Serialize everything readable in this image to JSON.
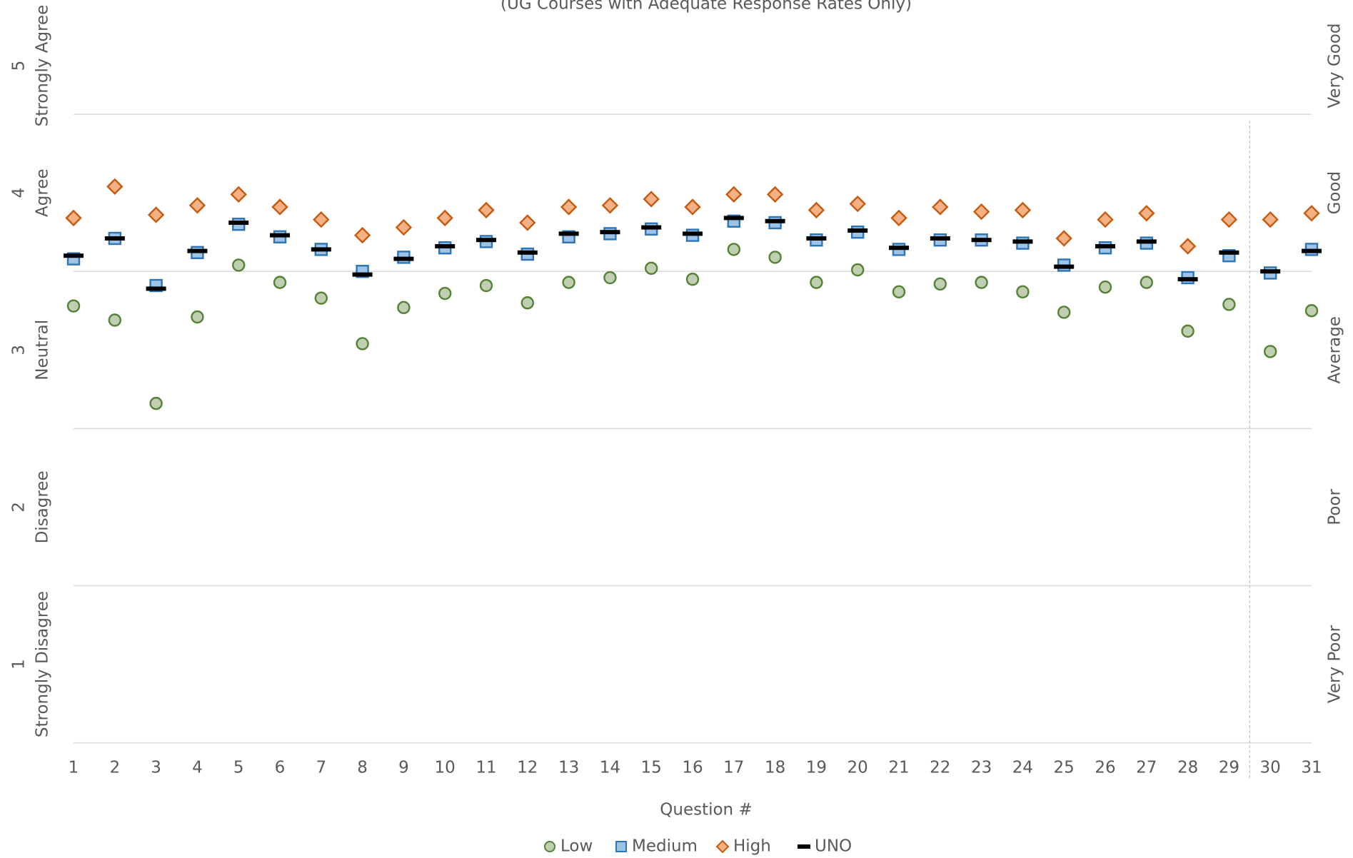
{
  "chart_data": {
    "type": "scatter",
    "subtitle": "(UG Courses with Adequate Response Rates Only)",
    "x_label": "Question #",
    "categories": [
      "1",
      "2",
      "3",
      "4",
      "5",
      "6",
      "7",
      "8",
      "9",
      "10",
      "11",
      "12",
      "13",
      "14",
      "15",
      "16",
      "17",
      "18",
      "19",
      "20",
      "21",
      "22",
      "23",
      "24",
      "25",
      "26",
      "27",
      "28",
      "29",
      "30",
      "31"
    ],
    "series": [
      {
        "name": "Low",
        "marker": "circle",
        "color": "#548235",
        "fill": "#c0cfb2",
        "values": [
          3.28,
          3.19,
          2.66,
          3.21,
          3.54,
          3.43,
          3.33,
          3.04,
          3.27,
          3.36,
          3.41,
          3.3,
          3.43,
          3.46,
          3.52,
          3.45,
          3.64,
          3.59,
          3.43,
          3.51,
          3.37,
          3.42,
          3.43,
          3.37,
          3.24,
          3.4,
          3.43,
          3.12,
          3.29,
          2.99,
          3.25
        ]
      },
      {
        "name": "Medium",
        "marker": "square",
        "color": "#2e75b6",
        "fill": "#9dc3e6",
        "values": [
          3.58,
          3.71,
          3.41,
          3.62,
          3.8,
          3.72,
          3.64,
          3.5,
          3.59,
          3.65,
          3.69,
          3.61,
          3.72,
          3.74,
          3.77,
          3.73,
          3.82,
          3.81,
          3.7,
          3.75,
          3.64,
          3.7,
          3.7,
          3.68,
          3.54,
          3.65,
          3.68,
          3.46,
          3.6,
          3.49,
          3.64
        ]
      },
      {
        "name": "High",
        "marker": "diamond",
        "color": "#c55a11",
        "fill": "#f4b183",
        "values": [
          3.84,
          4.04,
          3.86,
          3.92,
          3.99,
          3.91,
          3.83,
          3.73,
          3.78,
          3.84,
          3.89,
          3.81,
          3.91,
          3.92,
          3.96,
          3.91,
          3.99,
          3.99,
          3.89,
          3.93,
          3.84,
          3.91,
          3.88,
          3.89,
          3.71,
          3.83,
          3.87,
          3.66,
          3.83,
          3.83,
          3.87
        ]
      },
      {
        "name": "UNO",
        "marker": "dash",
        "color": "#000000",
        "fill": "#000000",
        "values": [
          3.6,
          3.71,
          3.39,
          3.63,
          3.81,
          3.73,
          3.64,
          3.48,
          3.58,
          3.66,
          3.7,
          3.62,
          3.74,
          3.75,
          3.78,
          3.74,
          3.84,
          3.82,
          3.71,
          3.76,
          3.65,
          3.71,
          3.7,
          3.69,
          3.53,
          3.66,
          3.69,
          3.45,
          3.62,
          3.5,
          3.63
        ]
      }
    ],
    "ylim": [
      0.5,
      5.2
    ],
    "yticks": [
      1,
      2,
      3,
      4,
      5
    ],
    "ytick_descriptions": [
      "Strongly Disagree",
      "Disagree",
      "Neutral",
      "Agree",
      "Strongly Agree"
    ],
    "y2_labels": [
      "Very Poor",
      "Poor",
      "Average",
      "Good",
      "Very Good"
    ],
    "grid_lines": [
      0.5,
      1.5,
      2.5,
      3.5,
      4.5
    ],
    "grid": true,
    "legend": "bottom"
  }
}
